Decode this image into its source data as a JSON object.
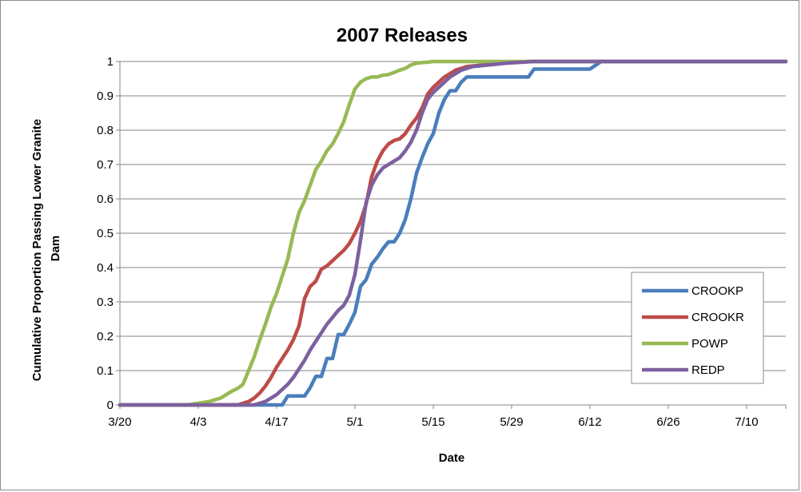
{
  "chart_data": {
    "type": "line",
    "title": "2007 Releases",
    "xlabel": "Date",
    "ylabel": "Cumulative Proportion Passing Lower Granite Dam",
    "xlim": [
      "3/20",
      "7/17"
    ],
    "ylim": [
      0,
      1
    ],
    "x_ticks": [
      "3/20",
      "4/3",
      "4/17",
      "5/1",
      "5/15",
      "5/29",
      "6/12",
      "6/26",
      "7/10"
    ],
    "y_ticks": [
      "0",
      "0.1",
      "0.2",
      "0.3",
      "0.4",
      "0.5",
      "0.6",
      "0.7",
      "0.8",
      "0.9",
      "1"
    ],
    "grid": "horizontal",
    "legend_position": "right",
    "series": [
      {
        "name": "CROOKP",
        "color": "#4a7ebb",
        "x": [
          "3/20",
          "4/18",
          "4/19",
          "4/22",
          "4/23",
          "4/24",
          "4/25",
          "4/26",
          "4/27",
          "4/28",
          "4/29",
          "4/30",
          "5/1",
          "5/2",
          "5/3",
          "5/4",
          "5/5",
          "5/6",
          "5/7",
          "5/8",
          "5/9",
          "5/10",
          "5/11",
          "5/12",
          "5/13",
          "5/14",
          "5/15",
          "5/16",
          "5/17",
          "5/18",
          "5/19",
          "5/20",
          "5/21",
          "5/25",
          "5/27",
          "6/1",
          "6/2",
          "6/11",
          "6/12",
          "6/14",
          "7/17"
        ],
        "values": [
          0,
          0,
          0.026,
          0.026,
          0.05,
          0.083,
          0.083,
          0.135,
          0.135,
          0.205,
          0.205,
          0.235,
          0.27,
          0.345,
          0.365,
          0.41,
          0.43,
          0.455,
          0.475,
          0.475,
          0.5,
          0.54,
          0.6,
          0.675,
          0.72,
          0.76,
          0.79,
          0.85,
          0.89,
          0.915,
          0.915,
          0.94,
          0.955,
          0.955,
          0.955,
          0.955,
          0.978,
          0.978,
          0.978,
          1,
          1
        ]
      },
      {
        "name": "CROOKR",
        "color": "#be4b48",
        "x": [
          "3/20",
          "4/10",
          "4/11",
          "4/12",
          "4/13",
          "4/14",
          "4/15",
          "4/16",
          "4/17",
          "4/18",
          "4/19",
          "4/20",
          "4/21",
          "4/22",
          "4/23",
          "4/24",
          "4/25",
          "4/26",
          "4/27",
          "4/28",
          "4/29",
          "4/30",
          "5/1",
          "5/2",
          "5/3",
          "5/4",
          "5/5",
          "5/6",
          "5/7",
          "5/8",
          "5/9",
          "5/10",
          "5/11",
          "5/12",
          "5/13",
          "5/14",
          "5/15",
          "5/16",
          "5/17",
          "5/19",
          "5/21",
          "5/24",
          "5/27",
          "6/1",
          "7/17"
        ],
        "values": [
          0,
          0,
          0.005,
          0.01,
          0.02,
          0.035,
          0.055,
          0.08,
          0.11,
          0.135,
          0.16,
          0.19,
          0.23,
          0.31,
          0.345,
          0.36,
          0.395,
          0.405,
          0.42,
          0.435,
          0.45,
          0.47,
          0.5,
          0.535,
          0.585,
          0.665,
          0.71,
          0.74,
          0.76,
          0.77,
          0.775,
          0.79,
          0.815,
          0.835,
          0.865,
          0.905,
          0.925,
          0.94,
          0.955,
          0.975,
          0.985,
          0.99,
          0.995,
          1,
          1
        ]
      },
      {
        "name": "POWP",
        "color": "#98b954",
        "x": [
          "3/20",
          "4/1",
          "4/3",
          "4/5",
          "4/7",
          "4/8",
          "4/9",
          "4/10",
          "4/11",
          "4/12",
          "4/13",
          "4/14",
          "4/15",
          "4/16",
          "4/17",
          "4/18",
          "4/19",
          "4/20",
          "4/21",
          "4/22",
          "4/23",
          "4/24",
          "4/25",
          "4/26",
          "4/27",
          "4/28",
          "4/29",
          "4/30",
          "5/1",
          "5/2",
          "5/3",
          "5/4",
          "5/5",
          "5/6",
          "5/7",
          "5/8",
          "5/9",
          "5/10",
          "5/11",
          "5/12",
          "5/13",
          "5/14",
          "5/15",
          "5/17",
          "5/20",
          "5/24",
          "5/27",
          "7/17"
        ],
        "values": [
          0,
          0,
          0.005,
          0.01,
          0.02,
          0.03,
          0.04,
          0.048,
          0.06,
          0.1,
          0.14,
          0.19,
          0.235,
          0.285,
          0.325,
          0.375,
          0.425,
          0.5,
          0.56,
          0.595,
          0.64,
          0.685,
          0.71,
          0.74,
          0.76,
          0.79,
          0.825,
          0.875,
          0.92,
          0.94,
          0.95,
          0.955,
          0.955,
          0.96,
          0.962,
          0.968,
          0.975,
          0.98,
          0.99,
          0.995,
          0.997,
          0.998,
          1,
          1,
          1,
          1,
          1,
          1
        ]
      },
      {
        "name": "REDP",
        "color": "#7d60a0",
        "x": [
          "3/20",
          "4/13",
          "4/14",
          "4/15",
          "4/16",
          "4/17",
          "4/18",
          "4/19",
          "4/20",
          "4/21",
          "4/22",
          "4/23",
          "4/24",
          "4/25",
          "4/26",
          "4/27",
          "4/28",
          "4/29",
          "4/30",
          "5/1",
          "5/2",
          "5/3",
          "5/4",
          "5/5",
          "5/6",
          "5/7",
          "5/8",
          "5/9",
          "5/10",
          "5/11",
          "5/12",
          "5/13",
          "5/14",
          "5/15",
          "5/16",
          "5/17",
          "5/18",
          "5/19",
          "5/20",
          "5/22",
          "5/25",
          "5/28",
          "6/2",
          "7/17"
        ],
        "values": [
          0,
          0,
          0.005,
          0.01,
          0.02,
          0.03,
          0.045,
          0.06,
          0.08,
          0.105,
          0.13,
          0.16,
          0.185,
          0.21,
          0.235,
          0.255,
          0.275,
          0.29,
          0.32,
          0.38,
          0.48,
          0.59,
          0.64,
          0.67,
          0.69,
          0.7,
          0.71,
          0.72,
          0.74,
          0.765,
          0.8,
          0.85,
          0.89,
          0.91,
          0.925,
          0.94,
          0.955,
          0.965,
          0.975,
          0.985,
          0.99,
          0.995,
          1,
          1
        ]
      }
    ]
  }
}
